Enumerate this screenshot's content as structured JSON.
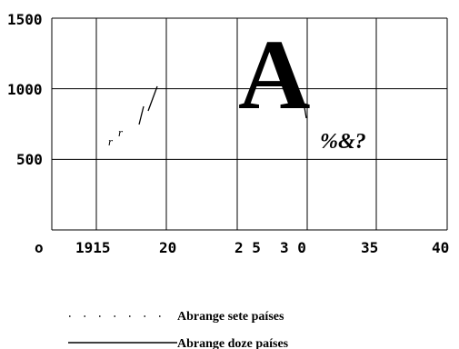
{
  "chart_data": {
    "type": "line",
    "title": "",
    "xlabel": "",
    "ylabel": "",
    "y_ticks": [
      "1500",
      "1000",
      "500"
    ],
    "x_ticks": [
      "o",
      "1915",
      "20",
      "2 5",
      "3 0",
      "35",
      "40"
    ],
    "ylim": [
      0,
      1500
    ],
    "grid": true,
    "annotations": {
      "large_letter": "A",
      "symbols": "%&?",
      "fragment": "r",
      "fragment_sup": "r"
    },
    "series": [
      {
        "name": "Abrange sete países",
        "style": "dotted",
        "values": []
      },
      {
        "name": "Abrange doze países",
        "style": "solid",
        "values": []
      }
    ],
    "legend_position": "bottom-left"
  }
}
